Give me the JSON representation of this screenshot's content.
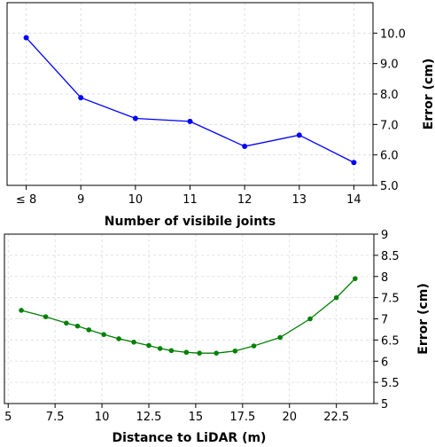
{
  "chart_data": [
    {
      "type": "line",
      "categories": [
        "≤ 8",
        "9",
        "10",
        "11",
        "12",
        "13",
        "14"
      ],
      "x": [
        8,
        9,
        10,
        11,
        12,
        13,
        14
      ],
      "series": [
        {
          "values": [
            9.85,
            7.88,
            7.2,
            7.1,
            6.28,
            6.65,
            5.75
          ],
          "color": "#0000ff"
        }
      ],
      "xlabel": "Number of visibile joints",
      "ylabel": "Error (cm)",
      "ylim": [
        5.0,
        11.0
      ],
      "yticks": [
        "5.0",
        "6.0",
        "7.0",
        "8.0",
        "9.0",
        "10.0"
      ],
      "y_axis_side": "right",
      "grid": true
    },
    {
      "type": "line",
      "x": [
        5.7,
        7.0,
        8.1,
        8.7,
        9.3,
        10.1,
        10.9,
        11.7,
        12.5,
        13.1,
        13.7,
        14.5,
        15.2,
        16.1,
        17.1,
        18.1,
        19.5,
        21.1,
        22.5,
        23.5
      ],
      "series": [
        {
          "values": [
            7.2,
            7.05,
            6.9,
            6.83,
            6.74,
            6.63,
            6.53,
            6.45,
            6.37,
            6.3,
            6.25,
            6.21,
            6.19,
            6.19,
            6.24,
            6.36,
            6.56,
            7.0,
            7.5,
            7.95
          ],
          "color": "#008000"
        }
      ],
      "xticks": [
        "5",
        "7.5",
        "10",
        "12.5",
        "15",
        "17.5",
        "20",
        "22.5"
      ],
      "xlabel": "Distance to LiDAR (m)",
      "ylabel": "Error (cm)",
      "xlim": [
        4.8,
        24.5
      ],
      "ylim": [
        5,
        9
      ],
      "yticks": [
        "5",
        "5.5",
        "6",
        "6.5",
        "7",
        "7.5",
        "8",
        "8.5",
        "9"
      ],
      "y_axis_side": "right",
      "grid": true
    }
  ]
}
